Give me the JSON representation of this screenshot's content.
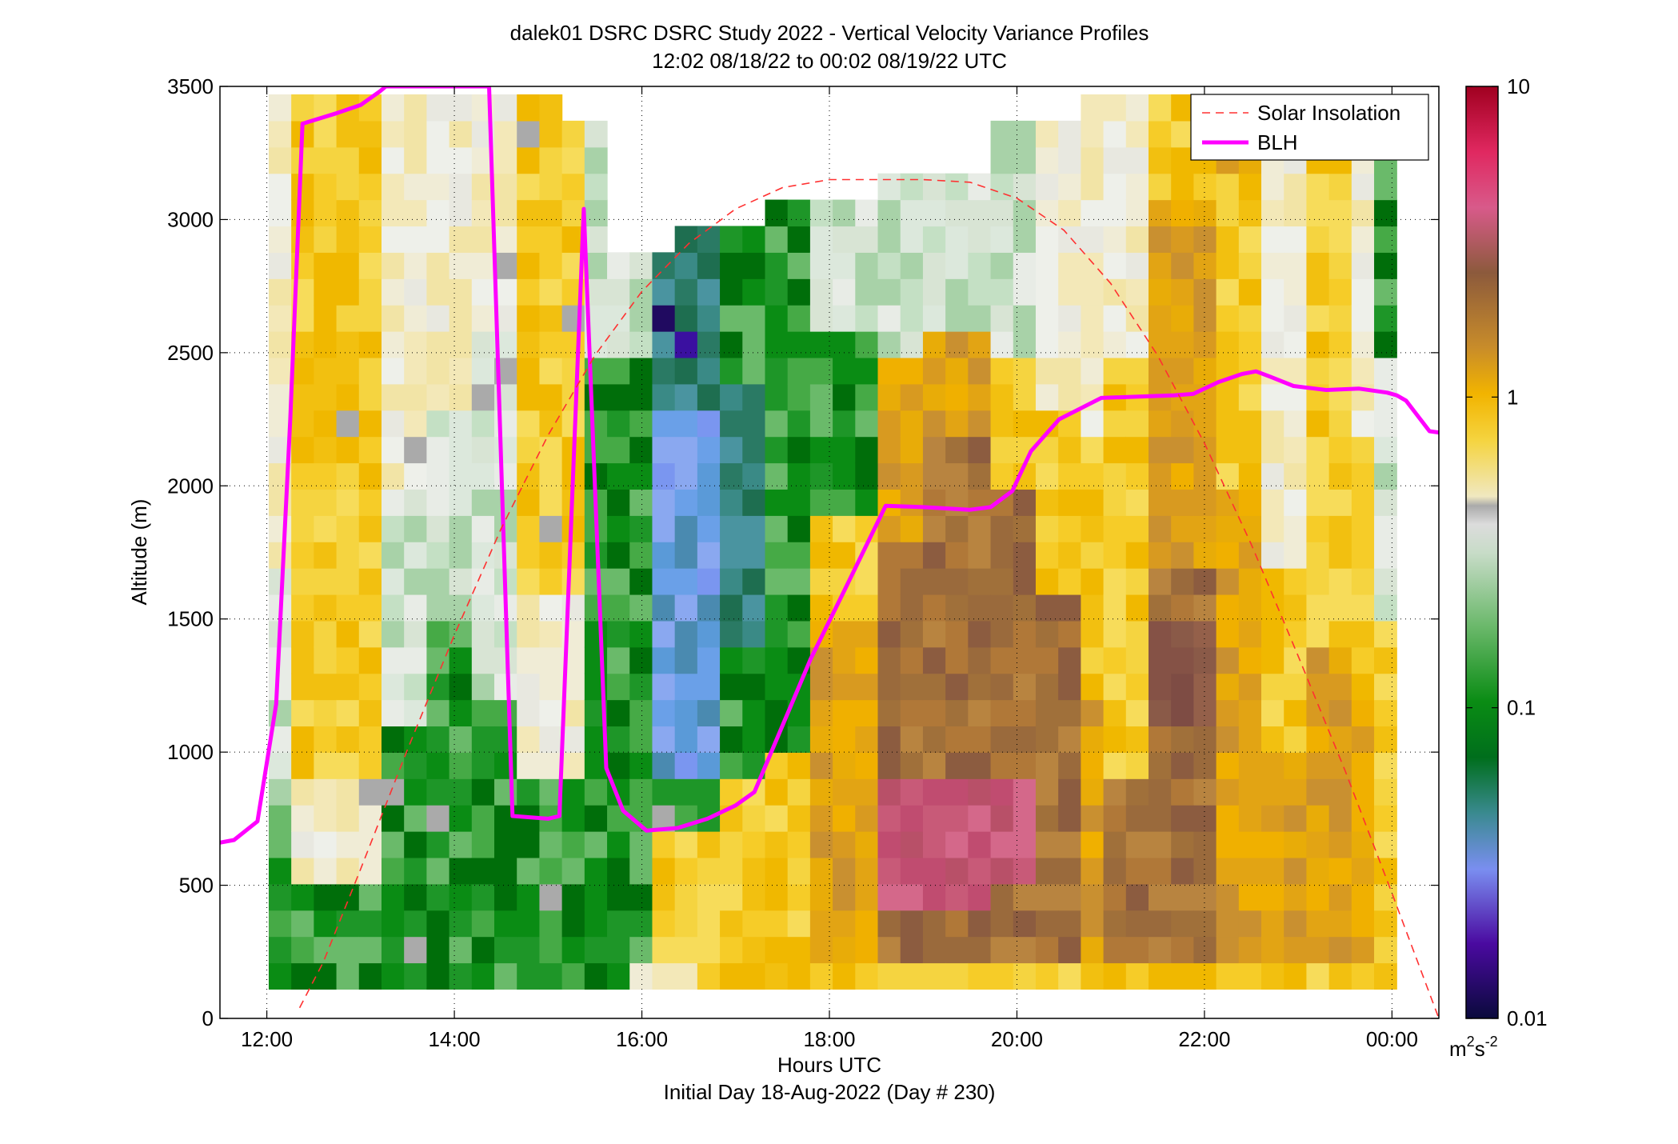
{
  "chart_data": {
    "type": "heatmap",
    "title": "dalek01 DSRC DSRC Study 2022 - Vertical Velocity Variance Profiles",
    "subtitle": "12:02 08/18/22 to 00:02 08/19/22  UTC",
    "xlabel": "Hours UTC",
    "xlabel2": "Initial Day 18-Aug-2022 (Day # 230)",
    "ylabel": "Altitude (m)",
    "xlim": [
      11.5,
      24.5
    ],
    "ylim": [
      0,
      3500
    ],
    "x_ticks": [
      12,
      14,
      16,
      18,
      20,
      22,
      24
    ],
    "x_tick_labels": [
      "12:00",
      "14:00",
      "16:00",
      "18:00",
      "20:00",
      "22:00",
      "00:00"
    ],
    "y_ticks": [
      0,
      500,
      1000,
      1500,
      2000,
      2500,
      3000,
      3500
    ],
    "y_tick_labels": [
      "0",
      "500",
      "1000",
      "1500",
      "2000",
      "2500",
      "3000",
      "3500"
    ],
    "grid": true,
    "colorbar": {
      "scale": "log",
      "range": [
        0.01,
        10
      ],
      "ticks": [
        0.01,
        0.1,
        1,
        10
      ],
      "tick_labels": [
        "0.01",
        "0.1",
        "1",
        "10"
      ],
      "unit_base": "m",
      "unit_sup1": "2",
      "unit_mid": "s",
      "unit_sup2": "-2"
    },
    "legend": {
      "placement": "top-right",
      "entries": [
        {
          "label": "Solar Insolation",
          "style": "dashed",
          "color": "#ff3030"
        },
        {
          "label": "BLH",
          "style": "solid",
          "color": "#ff00ff"
        }
      ]
    },
    "series": [
      {
        "name": "BLH",
        "color": "#ff00ff",
        "x": [
          11.5,
          11.65,
          11.9,
          12.1,
          12.25,
          12.38,
          12.75,
          13.0,
          13.2,
          13.27,
          14.37,
          14.62,
          15.0,
          15.12,
          15.38,
          15.62,
          15.8,
          16.05,
          16.38,
          16.7,
          17.0,
          17.2,
          17.5,
          17.8,
          18.15,
          18.6,
          19.0,
          19.5,
          19.72,
          19.95,
          20.15,
          20.45,
          20.9,
          21.3,
          21.68,
          21.88,
          22.15,
          22.4,
          22.55,
          22.7,
          22.95,
          23.3,
          23.65,
          23.95,
          24.05,
          24.15,
          24.4,
          24.5
        ],
        "y": [
          660,
          670,
          740,
          1180,
          2250,
          3360,
          3400,
          3430,
          3480,
          3500,
          3500,
          760,
          750,
          760,
          3040,
          940,
          780,
          705,
          715,
          750,
          800,
          850,
          1100,
          1350,
          1600,
          1925,
          1920,
          1910,
          1920,
          1980,
          2130,
          2250,
          2330,
          2335,
          2340,
          2345,
          2390,
          2420,
          2430,
          2410,
          2375,
          2360,
          2365,
          2350,
          2340,
          2320,
          2205,
          2200
        ]
      },
      {
        "name": "Solar Insolation",
        "color": "#ff3030",
        "x": [
          12.35,
          12.6,
          13.0,
          13.5,
          14.0,
          14.5,
          15.0,
          15.5,
          16.0,
          16.5,
          17.0,
          17.5,
          18.0,
          18.5,
          19.0,
          19.5,
          20.0,
          20.5,
          21.0,
          21.5,
          22.0,
          22.5,
          23.0,
          23.5,
          24.0,
          24.5
        ],
        "y": [
          40,
          210,
          560,
          1010,
          1440,
          1840,
          2190,
          2490,
          2730,
          2910,
          3040,
          3120,
          3150,
          3150,
          3150,
          3140,
          3080,
          2960,
          2760,
          2490,
          2160,
          1780,
          1360,
          930,
          470,
          0
        ]
      }
    ]
  }
}
